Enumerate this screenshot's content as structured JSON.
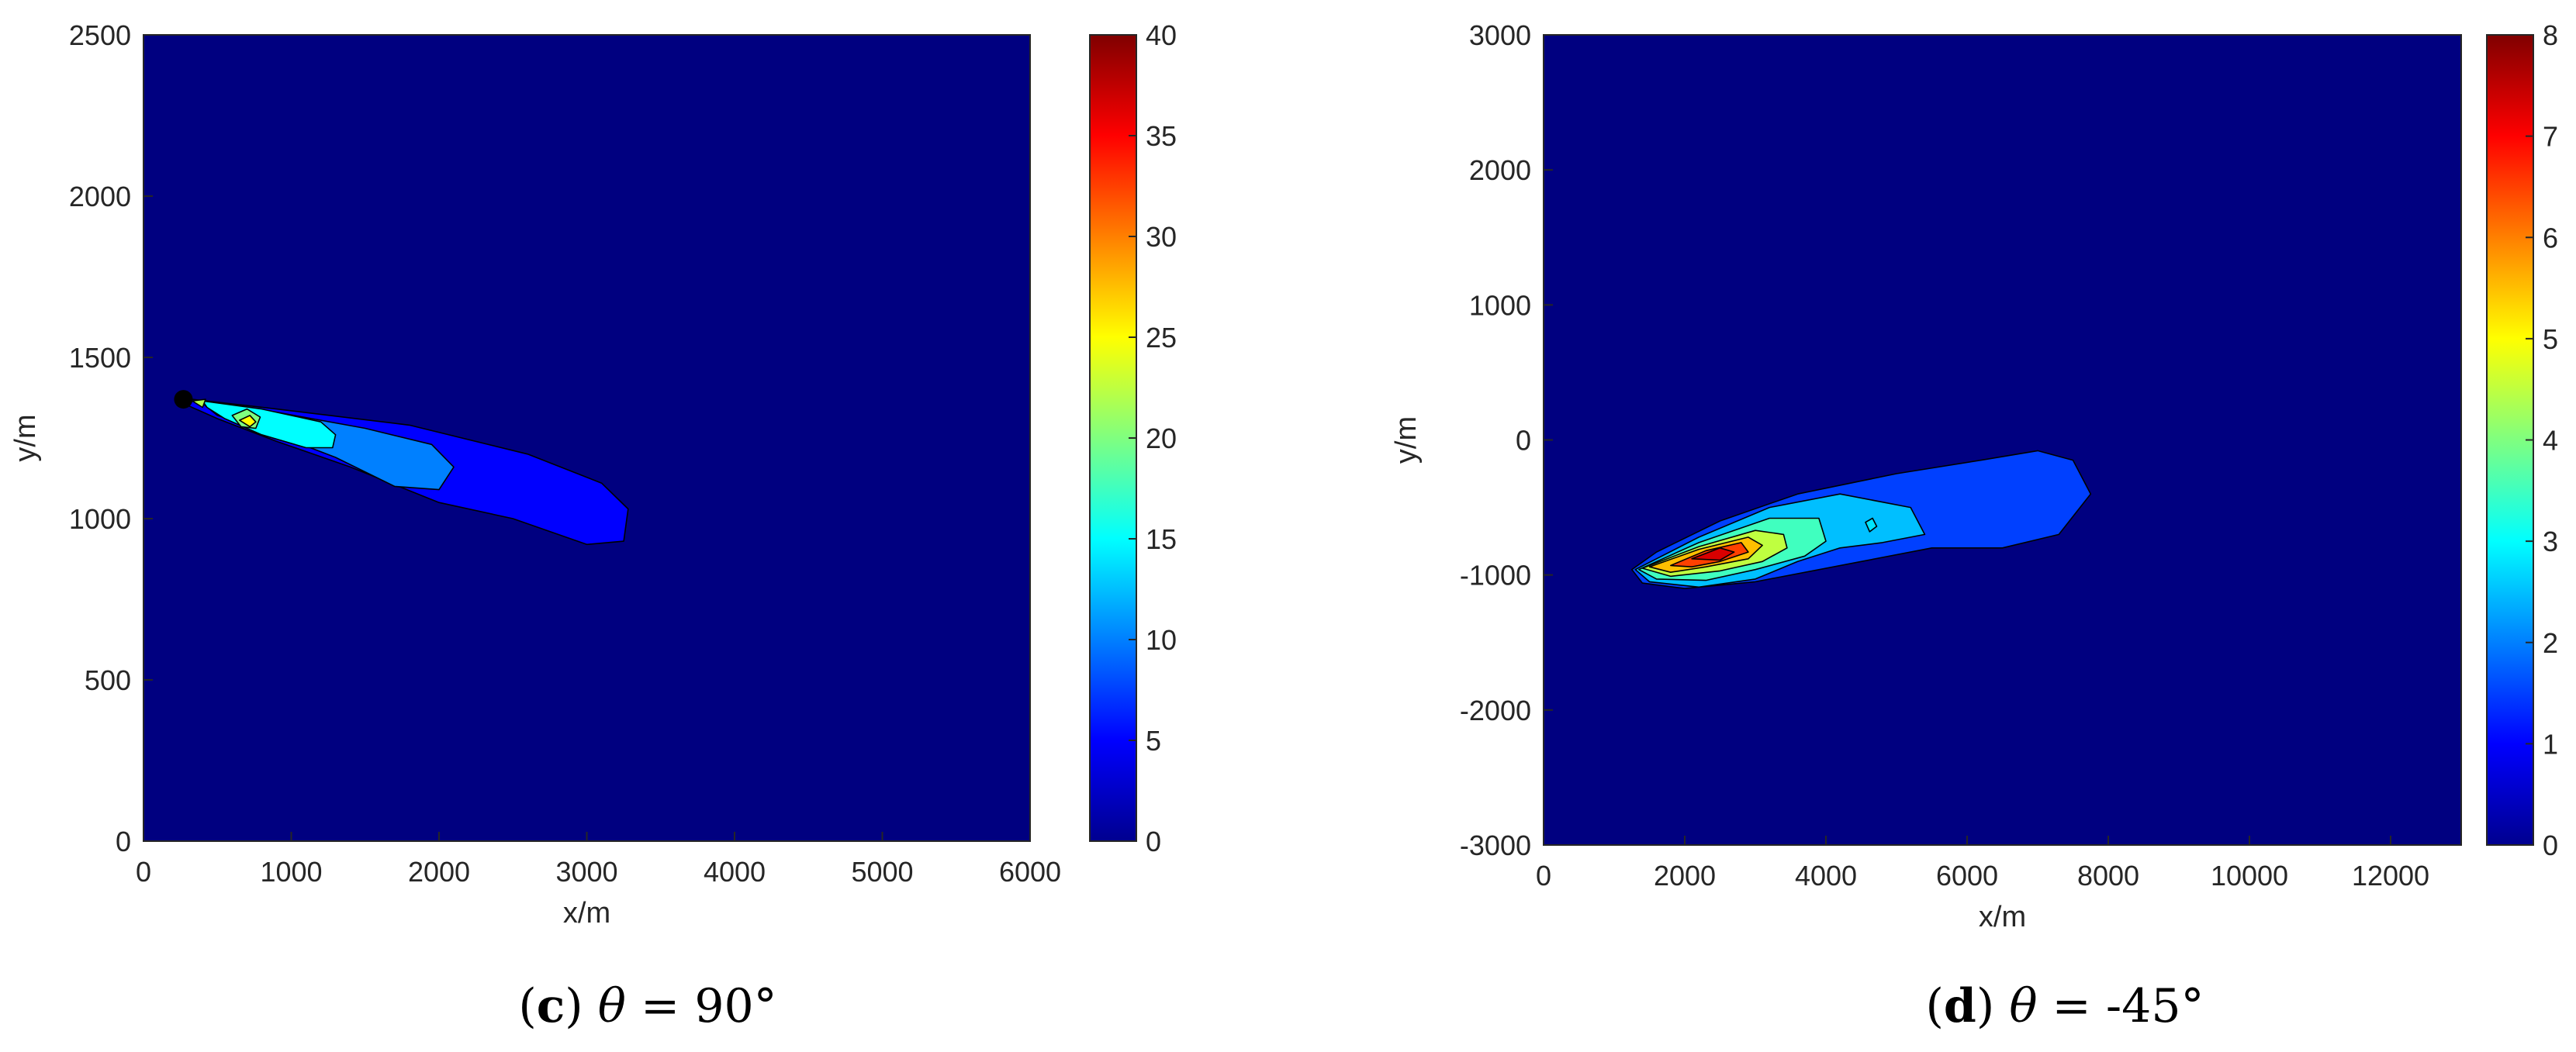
{
  "chart_data": [
    {
      "type": "heatmap",
      "subtype": "filled-contour",
      "caption": {
        "letter": "c",
        "symbol": "θ",
        "rest": " = 90°"
      },
      "xlabel": "x/m",
      "ylabel": "y/m",
      "xlim": [
        0,
        6000
      ],
      "ylim": [
        0,
        2500
      ],
      "xticks": [
        0,
        1000,
        2000,
        3000,
        4000,
        5000,
        6000
      ],
      "yticks": [
        0,
        500,
        1000,
        1500,
        2000,
        2500
      ],
      "colorbar": {
        "min": 0,
        "max": 40,
        "ticks": [
          0,
          5,
          10,
          15,
          20,
          25,
          30,
          35,
          40
        ],
        "colormap": "jet"
      },
      "source_point": [
        270,
        1370
      ],
      "contour_regions": [
        {
          "level": 5,
          "polygon": [
            [
              330,
              1370
            ],
            [
              900,
              1340
            ],
            [
              1800,
              1290
            ],
            [
              2600,
              1200
            ],
            [
              3100,
              1110
            ],
            [
              3280,
              1030
            ],
            [
              3250,
              930
            ],
            [
              3000,
              920
            ],
            [
              2500,
              1000
            ],
            [
              2000,
              1050
            ],
            [
              1400,
              1160
            ],
            [
              900,
              1240
            ],
            [
              500,
              1310
            ],
            [
              280,
              1355
            ]
          ]
        },
        {
          "level": 10,
          "polygon": [
            [
              380,
              1365
            ],
            [
              900,
              1330
            ],
            [
              1500,
              1280
            ],
            [
              1950,
              1230
            ],
            [
              2100,
              1160
            ],
            [
              2000,
              1090
            ],
            [
              1700,
              1100
            ],
            [
              1300,
              1190
            ],
            [
              900,
              1260
            ],
            [
              500,
              1320
            ]
          ]
        },
        {
          "level": 15,
          "polygon": [
            [
              400,
              1365
            ],
            [
              800,
              1340
            ],
            [
              1200,
              1300
            ],
            [
              1300,
              1260
            ],
            [
              1280,
              1220
            ],
            [
              1100,
              1220
            ],
            [
              800,
              1260
            ],
            [
              550,
              1310
            ],
            [
              430,
              1345
            ]
          ]
        },
        {
          "level": 20,
          "polygon": [
            [
              600,
              1320
            ],
            [
              700,
              1340
            ],
            [
              790,
              1315
            ],
            [
              760,
              1280
            ],
            [
              660,
              1285
            ]
          ]
        },
        {
          "level": 25,
          "polygon": [
            [
              650,
              1305
            ],
            [
              720,
              1320
            ],
            [
              760,
              1300
            ],
            [
              720,
              1285
            ]
          ]
        },
        {
          "level": 22,
          "polygon": [
            [
              330,
              1365
            ],
            [
              420,
              1370
            ],
            [
              400,
              1345
            ]
          ]
        }
      ]
    },
    {
      "type": "heatmap",
      "subtype": "filled-contour",
      "caption": {
        "letter": "d",
        "symbol": "θ",
        "rest": " = -45°"
      },
      "xlabel": "x/m",
      "ylabel": "y/m",
      "xlim": [
        0,
        13000
      ],
      "ylim": [
        -3000,
        3000
      ],
      "xticks": [
        0,
        2000,
        4000,
        6000,
        8000,
        10000,
        12000
      ],
      "yticks": [
        -3000,
        -2000,
        -1000,
        0,
        1000,
        2000,
        3000
      ],
      "colorbar": {
        "min": 0,
        "max": 8,
        "ticks": [
          0,
          1,
          2,
          3,
          4,
          5,
          6,
          7,
          8
        ],
        "colormap": "jet"
      },
      "contour_regions": [
        {
          "level": 1.5,
          "polygon": [
            [
              1250,
              -960
            ],
            [
              1600,
              -830
            ],
            [
              2500,
              -600
            ],
            [
              3600,
              -400
            ],
            [
              5000,
              -250
            ],
            [
              6200,
              -150
            ],
            [
              7000,
              -80
            ],
            [
              7500,
              -150
            ],
            [
              7750,
              -400
            ],
            [
              7300,
              -700
            ],
            [
              6500,
              -800
            ],
            [
              5500,
              -800
            ],
            [
              4500,
              -900
            ],
            [
              3000,
              -1050
            ],
            [
              2000,
              -1100
            ],
            [
              1400,
              -1060
            ]
          ]
        },
        {
          "level": 2.5,
          "polygon": [
            [
              1300,
              -960
            ],
            [
              2200,
              -720
            ],
            [
              3200,
              -500
            ],
            [
              4200,
              -400
            ],
            [
              5200,
              -500
            ],
            [
              5400,
              -700
            ],
            [
              4800,
              -760
            ],
            [
              4200,
              -800
            ],
            [
              3600,
              -900
            ],
            [
              3000,
              -1030
            ],
            [
              2200,
              -1090
            ],
            [
              1500,
              -1050
            ]
          ]
        },
        {
          "level": 3.5,
          "polygon": [
            [
              1350,
              -960
            ],
            [
              2200,
              -760
            ],
            [
              3200,
              -580
            ],
            [
              3900,
              -580
            ],
            [
              4000,
              -750
            ],
            [
              3700,
              -860
            ],
            [
              3000,
              -960
            ],
            [
              2300,
              -1040
            ],
            [
              1600,
              -1030
            ]
          ]
        },
        {
          "level": 4.5,
          "polygon": [
            [
              1400,
              -950
            ],
            [
              2200,
              -790
            ],
            [
              3000,
              -670
            ],
            [
              3400,
              -700
            ],
            [
              3450,
              -800
            ],
            [
              3100,
              -900
            ],
            [
              2500,
              -970
            ],
            [
              1800,
              -1010
            ]
          ]
        },
        {
          "level": 5.5,
          "polygon": [
            [
              1500,
              -940
            ],
            [
              2200,
              -810
            ],
            [
              2900,
              -720
            ],
            [
              3100,
              -780
            ],
            [
              2900,
              -880
            ],
            [
              2300,
              -940
            ],
            [
              1800,
              -980
            ]
          ]
        },
        {
          "level": 6.5,
          "polygon": [
            [
              1800,
              -930
            ],
            [
              2300,
              -820
            ],
            [
              2800,
              -760
            ],
            [
              2900,
              -830
            ],
            [
              2500,
              -900
            ],
            [
              2100,
              -940
            ]
          ]
        },
        {
          "level": 7.3,
          "polygon": [
            [
              2100,
              -880
            ],
            [
              2500,
              -800
            ],
            [
              2700,
              -830
            ],
            [
              2500,
              -890
            ]
          ]
        },
        {
          "level": 2.8,
          "polygon": [
            [
              4560,
              -610
            ],
            [
              4660,
              -580
            ],
            [
              4720,
              -640
            ],
            [
              4620,
              -680
            ]
          ]
        }
      ]
    }
  ]
}
